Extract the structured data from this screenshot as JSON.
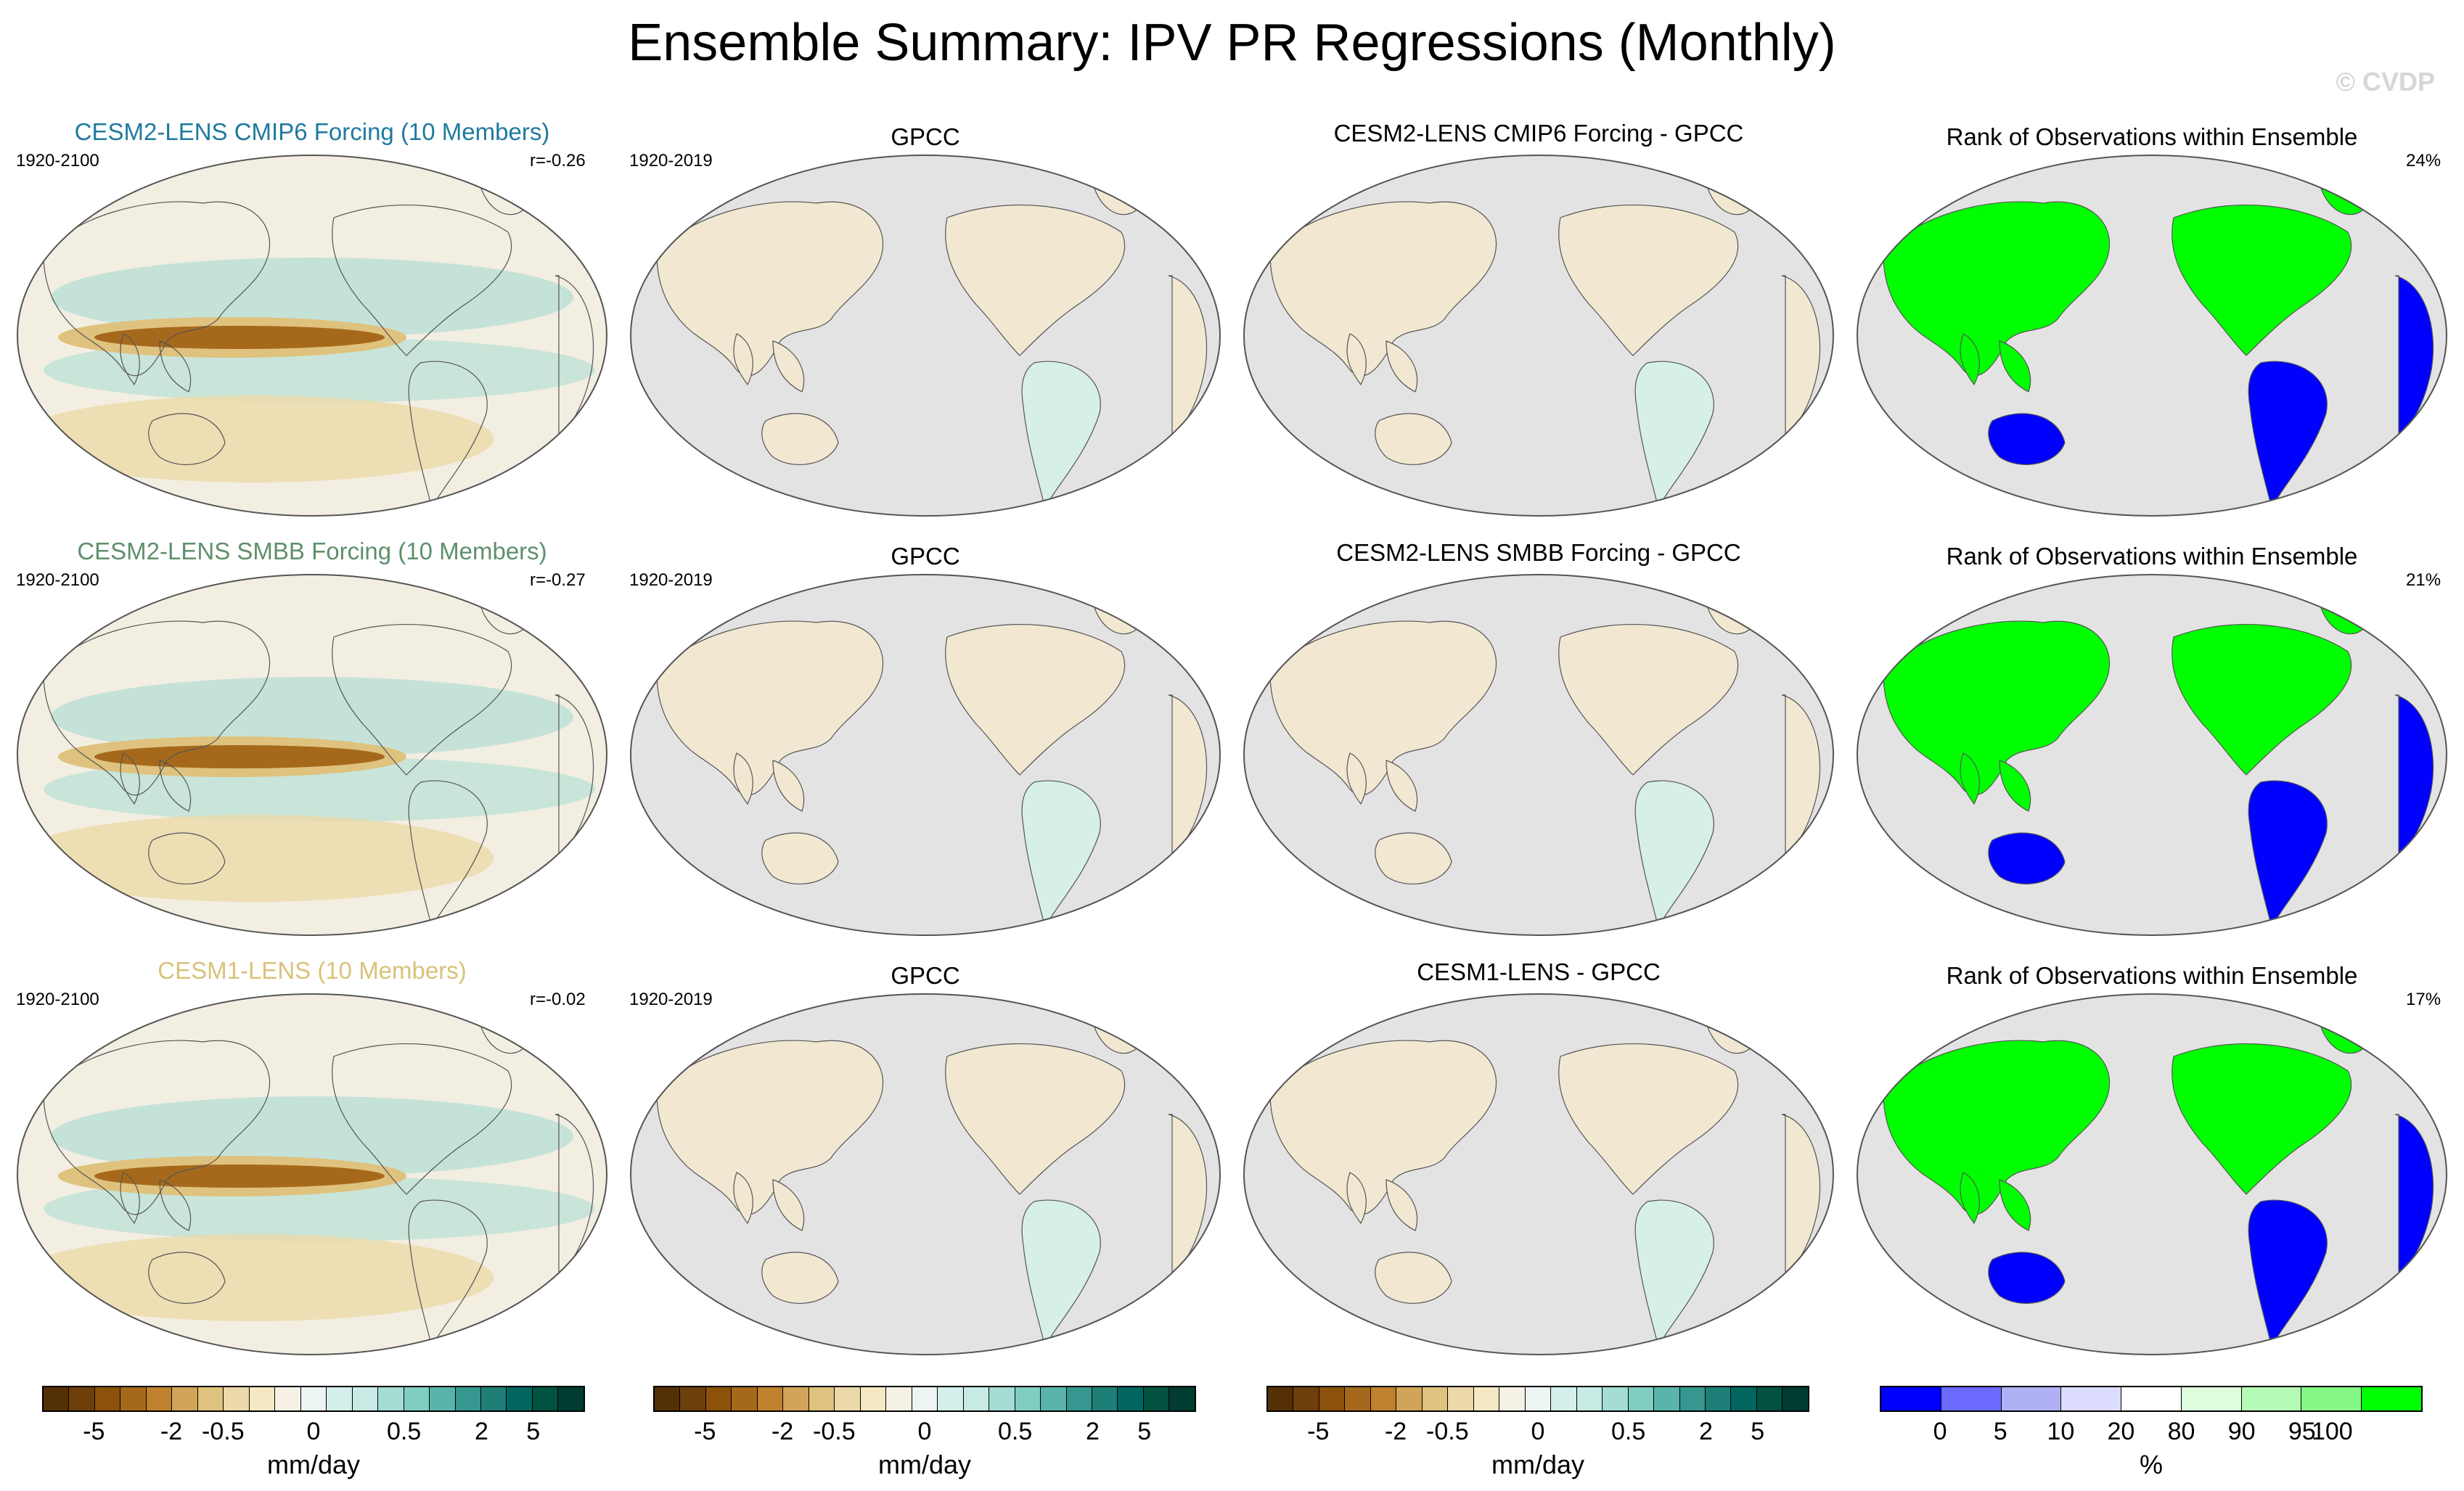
{
  "title": "Ensemble Summary: IPV PR Regressions (Monthly)",
  "copyright": "© CVDP",
  "rows": [
    {
      "model_title": "CESM2-LENS CMIP6 Forcing (10 Members)",
      "model_title_color": "#1f7a9e",
      "model_years": "1920-2100",
      "correlation": "r=-0.26",
      "obs_title": "GPCC",
      "obs_years": "1920-2019",
      "diff_title": "CESM2-LENS CMIP6 Forcing - GPCC",
      "rank_title": "Rank of Observations within Ensemble",
      "rank_percent": "24%"
    },
    {
      "model_title": "CESM2-LENS SMBB Forcing (10 Members)",
      "model_title_color": "#5f8f6a",
      "model_years": "1920-2100",
      "correlation": "r=-0.27",
      "obs_title": "GPCC",
      "obs_years": "1920-2019",
      "diff_title": "CESM2-LENS SMBB Forcing - GPCC",
      "rank_title": "Rank of Observations within Ensemble",
      "rank_percent": "21%"
    },
    {
      "model_title": "CESM1-LENS (10 Members)",
      "model_title_color": "#d9c27a",
      "model_years": "1920-2100",
      "correlation": "r=-0.02",
      "obs_title": "GPCC",
      "obs_years": "1920-2019",
      "diff_title": "CESM1-LENS - GPCC",
      "rank_title": "Rank of Observations within Ensemble",
      "rank_percent": "17%"
    }
  ],
  "colorbar_pr": {
    "colors": [
      "#543005",
      "#6e3f0a",
      "#8c510a",
      "#a6691c",
      "#bf812d",
      "#d2a45a",
      "#dfc27d",
      "#ecd9a9",
      "#f6e8c3",
      "#f5f1e4",
      "#ecf5f3",
      "#d4efeb",
      "#c7eae5",
      "#a3ddd4",
      "#80cdc1",
      "#5ab4ab",
      "#35978f",
      "#1d7f77",
      "#01665e",
      "#01533f",
      "#003c30"
    ],
    "ticks": [
      "-5",
      "-2",
      "-0.5",
      "0",
      "0.5",
      "2",
      "5"
    ],
    "unit": "mm/day"
  },
  "colorbar_rank": {
    "colors": [
      "#0000ff",
      "#6a6aff",
      "#b0b0f5",
      "#dcdcff",
      "#ffffff",
      "#ddfddd",
      "#b5fab5",
      "#85f785",
      "#00ff00"
    ],
    "ticks": [
      "0",
      "5",
      "10",
      "20",
      "80",
      "90",
      "95",
      "100"
    ],
    "unit": "%"
  },
  "map_colors": {
    "background": "#e3e3e3",
    "ocean_neutral": "#f3eee2",
    "dry": "#c9903c",
    "wet": "#9fd9cf",
    "rank_high": "#00ff00",
    "rank_low": "#0000ff"
  }
}
